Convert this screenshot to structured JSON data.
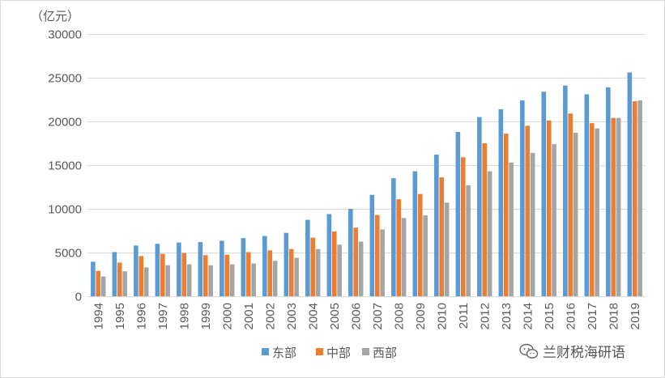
{
  "chart_data": {
    "type": "bar",
    "ylabel": "（亿元）",
    "ylim": [
      0,
      30000
    ],
    "yticks": [
      0,
      5000,
      10000,
      15000,
      20000,
      25000,
      30000
    ],
    "grid": true,
    "legend_position": "bottom-center",
    "categories": [
      "1994",
      "1995",
      "1996",
      "1997",
      "1998",
      "1999",
      "2000",
      "2001",
      "2002",
      "2003",
      "2004",
      "2005",
      "2006",
      "2007",
      "2008",
      "2009",
      "2010",
      "2011",
      "2012",
      "2013",
      "2014",
      "2015",
      "2016",
      "2017",
      "2018",
      "2019"
    ],
    "series": [
      {
        "name": "东部",
        "color": "#5B9BD5",
        "values": [
          3950,
          5050,
          5800,
          6000,
          6150,
          6200,
          6350,
          6650,
          6900,
          7250,
          8750,
          9400,
          10000,
          11600,
          13500,
          14300,
          16200,
          18800,
          20500,
          21400,
          22400,
          23400,
          24100,
          23100,
          23900,
          25600
        ]
      },
      {
        "name": "中部",
        "color": "#ED7D31",
        "values": [
          2900,
          3850,
          4600,
          4850,
          4950,
          4700,
          4750,
          5050,
          5250,
          5400,
          6700,
          7400,
          7850,
          9300,
          11100,
          11700,
          13600,
          15900,
          17500,
          18600,
          19500,
          20100,
          20900,
          19800,
          20400,
          22300
        ]
      },
      {
        "name": "西部",
        "color": "#A5A5A5",
        "values": [
          2250,
          2850,
          3300,
          3550,
          3650,
          3550,
          3650,
          3750,
          4050,
          4400,
          5400,
          5900,
          6250,
          7650,
          8950,
          9250,
          10700,
          12700,
          14300,
          15300,
          16400,
          17400,
          18700,
          19200,
          20400,
          22400
        ]
      }
    ]
  },
  "watermark": {
    "text": "兰财税海研语",
    "icon": "wechat-icon"
  }
}
